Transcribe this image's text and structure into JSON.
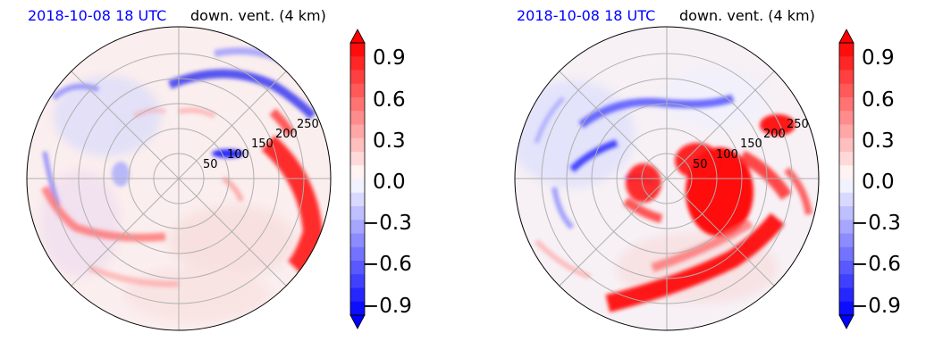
{
  "chart_data": [
    {
      "type": "heatmap",
      "projection": "polar",
      "title_time": "2018-10-08 18 UTC",
      "title_field": "down. vent. (4 km)",
      "ring_labels": [
        "50",
        "100",
        "150",
        "200",
        "250"
      ],
      "ring_radii": [
        50,
        100,
        150,
        200,
        250
      ],
      "grid": true,
      "colormap": "bwr",
      "colorbar": {
        "ticks": [
          "0.9",
          "0.6",
          "0.3",
          "0.0",
          "−0.3",
          "−0.6",
          "−0.9"
        ],
        "range": [
          -1.0,
          1.0
        ],
        "levels": 20,
        "extend": "both"
      },
      "features": [
        {
          "sign": "positive",
          "description": "strong updraft band along right edge",
          "azimuth_deg": 90,
          "range_km": 260
        },
        {
          "sign": "negative",
          "description": "downdraft arc in upper-right",
          "azimuth_deg": 35,
          "range_km": 200
        },
        {
          "sign": "positive",
          "description": "curved band lower-left",
          "azimuth_deg": 240,
          "range_km": 140
        }
      ]
    },
    {
      "type": "heatmap",
      "projection": "polar",
      "title_time": "2018-10-08 18 UTC",
      "title_field": "down. vent. (4 km)",
      "ring_labels": [
        "50",
        "100",
        "150",
        "200",
        "250"
      ],
      "ring_radii": [
        50,
        100,
        150,
        200,
        250
      ],
      "grid": true,
      "colormap": "bwr",
      "colorbar": {
        "ticks": [
          "0.9",
          "0.6",
          "0.3",
          "0.0",
          "−0.3",
          "−0.6",
          "−0.9"
        ],
        "range": [
          -1.0,
          1.0
        ],
        "levels": 20,
        "extend": "both"
      },
      "features": [
        {
          "sign": "positive",
          "description": "large updraft core east of center",
          "azimuth_deg": 100,
          "range_km": 90
        },
        {
          "sign": "positive",
          "description": "spiral band to the south",
          "azimuth_deg": 200,
          "range_km": 200
        },
        {
          "sign": "negative",
          "description": "downdraft ring north-west",
          "azimuth_deg": 320,
          "range_km": 120
        }
      ]
    }
  ]
}
